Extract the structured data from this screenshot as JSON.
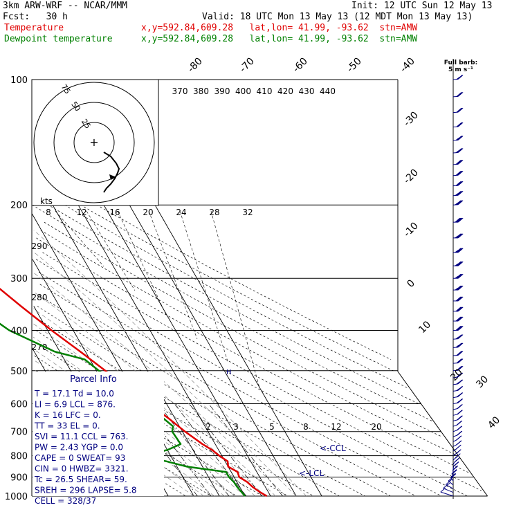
{
  "header": {
    "model": "3km ARW-WRF -- NCAR/MMM",
    "init": "Init: 12 UTC Sun 12 May 13",
    "fcst": "Fcst:   30 h",
    "valid": "Valid: 18 UTC Mon 13 May 13 (12 MDT Mon 13 May 13)",
    "temp_label": "Temperature",
    "dew_label": "Dewpoint temperature",
    "temp_info": "x,y=592.84,609.28   lat,lon= 41.99, -93.62  stn=AMW",
    "dew_info": "x,y=592.84,609.28   lat,lon= 41.99, -93.62  stn=AMW"
  },
  "colors": {
    "temperature": "#e00000",
    "dewpoint": "#008000",
    "parcel_text": "#000080",
    "grid": "#000000"
  },
  "barb_legend": {
    "title": "Full barb:",
    "units": "5 m s⁻¹"
  },
  "parcel": {
    "title": "Parcel Info",
    "rows": [
      [
        "T  =   17.1  Td =  10.0"
      ],
      [
        "LI =    6.9  LCL =  876."
      ],
      [
        "K  =     16  LFC =    0."
      ],
      [
        "TT =     33  EL  =    0."
      ],
      [
        "SVI =  11.1  CCL =  763."
      ],
      [
        "PW =   2.43  YGP =   0.0"
      ],
      [
        "CAPE =    0  SWEAT=   93"
      ],
      [
        "CIN =     0  HWBZ= 3321."
      ],
      [
        "Tc =   26.5  SHEAR=  59."
      ],
      [
        "SREH =  296  LAPSE=  5.8"
      ],
      [
        "CELL = 328/37"
      ]
    ]
  },
  "chart_data": {
    "type": "line",
    "chart_kind": "skew-T log-p sounding",
    "y_axis": {
      "label": "",
      "scale": "log",
      "ticks": [
        100,
        200,
        300,
        400,
        500,
        600,
        700,
        800,
        900,
        1000
      ],
      "range": [
        100,
        1000
      ]
    },
    "isotherm_labels": [
      -80,
      -70,
      -60,
      -50,
      -40,
      -30,
      -20,
      -10,
      0,
      10,
      20,
      30,
      40
    ],
    "theta_labels": [
      370,
      380,
      390,
      400,
      410,
      420,
      430,
      440
    ],
    "mixing_ratio_labels": [
      "2",
      "3",
      "5",
      "8",
      "12",
      "20"
    ],
    "hodograph": {
      "unit_label": "kts",
      "rings": [
        25,
        50,
        75
      ],
      "speed_ticks": [
        8,
        12,
        16,
        20,
        24,
        28,
        32
      ],
      "height_ticks": [
        290,
        280,
        270
      ]
    },
    "annotations": [
      "<-CCL",
      "<-LCL"
    ],
    "series": [
      {
        "name": "Temperature",
        "points": [
          [
            1000,
            18.5
          ],
          [
            975,
            16.5
          ],
          [
            950,
            15.0
          ],
          [
            925,
            14.0
          ],
          [
            900,
            12.0
          ],
          [
            875,
            12.5
          ],
          [
            850,
            10.0
          ],
          [
            825,
            11.0
          ],
          [
            800,
            9.0
          ],
          [
            775,
            7.5
          ],
          [
            750,
            5.0
          ],
          [
            700,
            1.0
          ],
          [
            650,
            -2.5
          ],
          [
            600,
            -7.0
          ],
          [
            550,
            -11.5
          ],
          [
            500,
            -16.5
          ],
          [
            450,
            -22.0
          ],
          [
            400,
            -28.5
          ],
          [
            350,
            -35.0
          ],
          [
            300,
            -42.0
          ],
          [
            250,
            -50.0
          ],
          [
            200,
            -57.0
          ],
          [
            175,
            -58.0
          ],
          [
            150,
            -56.0
          ],
          [
            140,
            -53.0
          ],
          [
            130,
            -52.0
          ],
          [
            120,
            -50.0
          ],
          [
            110,
            -49.0
          ],
          [
            100,
            -48.0
          ]
        ]
      },
      {
        "name": "Dewpoint temperature",
        "points": [
          [
            1000,
            10.0
          ],
          [
            975,
            9.5
          ],
          [
            950,
            9.0
          ],
          [
            925,
            8.8
          ],
          [
            900,
            8.0
          ],
          [
            875,
            8.0
          ],
          [
            850,
            -6.0
          ],
          [
            825,
            -13.0
          ],
          [
            800,
            -22.0
          ],
          [
            775,
            -10.0
          ],
          [
            750,
            -3.5
          ],
          [
            700,
            -4.0
          ],
          [
            680,
            -2.5
          ],
          [
            650,
            -4.5
          ],
          [
            600,
            -9.0
          ],
          [
            550,
            -13.5
          ],
          [
            500,
            -19.0
          ],
          [
            470,
            -22.0
          ],
          [
            450,
            -32.0
          ],
          [
            400,
            -45.0
          ],
          [
            350,
            -53.0
          ],
          [
            300,
            -57.0
          ],
          [
            250,
            -66.0
          ],
          [
            200,
            -78.0
          ],
          [
            175,
            -80.0
          ],
          [
            150,
            -78.0
          ],
          [
            130,
            -76.0
          ],
          [
            110,
            -77.0
          ],
          [
            100,
            -79.0
          ]
        ]
      }
    ],
    "wind_barbs": {
      "levels_hpa": [
        1000,
        980,
        960,
        940,
        920,
        900,
        880,
        860,
        840,
        820,
        800,
        780,
        760,
        740,
        720,
        700,
        680,
        660,
        640,
        620,
        600,
        580,
        560,
        540,
        520,
        500,
        480,
        460,
        440,
        420,
        400,
        380,
        360,
        340,
        320,
        300,
        280,
        260,
        240,
        220,
        200,
        190,
        180,
        170,
        160,
        150,
        140,
        130,
        120,
        110,
        100
      ],
      "speeds_ms": [
        6,
        7,
        8,
        9,
        10,
        11,
        11,
        12,
        12,
        13,
        13,
        12,
        12,
        12,
        11,
        11,
        11,
        11,
        12,
        12,
        13,
        13,
        14,
        14,
        15,
        15,
        16,
        17,
        18,
        19,
        20,
        21,
        22,
        22,
        23,
        23,
        23,
        24,
        24,
        25,
        24,
        23,
        22,
        21,
        20,
        19,
        18,
        17,
        16,
        15,
        14
      ],
      "dirs_deg": [
        170,
        180,
        190,
        200,
        210,
        215,
        220,
        225,
        230,
        235,
        240,
        240,
        245,
        245,
        250,
        250,
        250,
        255,
        255,
        255,
        260,
        260,
        260,
        260,
        260,
        265,
        265,
        265,
        265,
        265,
        270,
        270,
        270,
        270,
        270,
        270,
        270,
        270,
        270,
        270,
        265,
        265,
        265,
        265,
        265,
        265,
        265,
        265,
        265,
        265,
        265
      ]
    },
    "hodograph_trace_uv": [
      [
        0,
        0
      ],
      [
        8,
        -3
      ],
      [
        16,
        -4
      ],
      [
        22,
        0
      ],
      [
        26,
        6
      ],
      [
        30,
        12
      ],
      [
        34,
        18
      ],
      [
        38,
        24
      ],
      [
        42,
        30
      ],
      [
        48,
        36
      ],
      [
        56,
        44
      ],
      [
        62,
        52
      ]
    ]
  }
}
